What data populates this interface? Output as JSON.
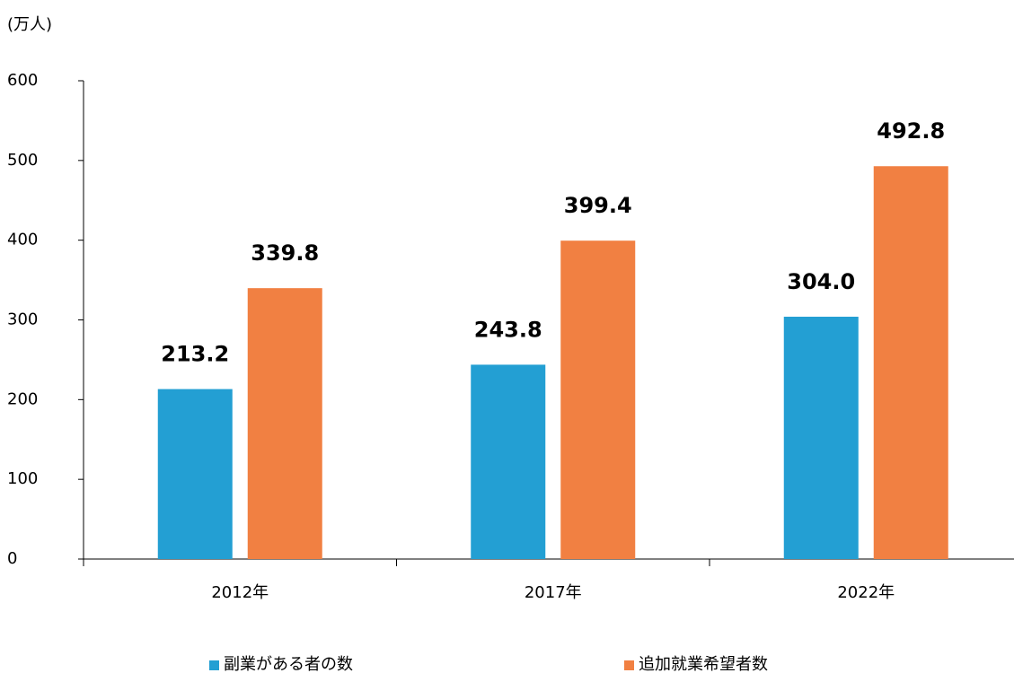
{
  "chart_data": {
    "type": "bar",
    "y_unit_label": "(万人)",
    "categories": [
      "2012年",
      "2017年",
      "2022年"
    ],
    "series": [
      {
        "name": "副業がある者の数",
        "color": "#239fd3",
        "values": [
          213.2,
          243.8,
          304.0
        ],
        "value_labels": [
          "213.2",
          "243.8",
          "304.0"
        ]
      },
      {
        "name": "追加就業希望者数",
        "color": "#f18042",
        "values": [
          339.8,
          399.4,
          492.8
        ],
        "value_labels": [
          "339.8",
          "399.4",
          "492.8"
        ]
      }
    ],
    "ylim": [
      0,
      600
    ],
    "yticks": [
      0,
      100,
      200,
      300,
      400,
      500,
      600
    ],
    "grid": false,
    "legend_position": "bottom"
  }
}
